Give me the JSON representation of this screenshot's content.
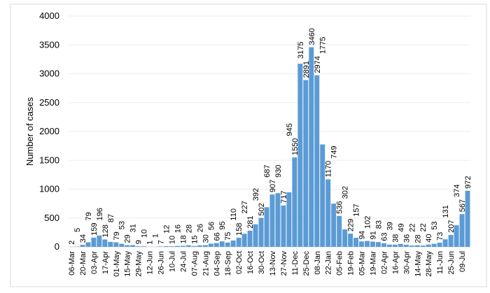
{
  "chart_data": {
    "type": "bar",
    "title": "",
    "xlabel": "",
    "ylabel": "Number of cases",
    "ylim": [
      0,
      4000
    ],
    "y_ticks": [
      0,
      500,
      1000,
      1500,
      2000,
      2500,
      3000,
      3500,
      4000
    ],
    "grid": true,
    "legend": "none",
    "bar_color": "#5B9BD5",
    "x_tick_labels": [
      "06-Mar",
      "20-Mar",
      "03-Apr",
      "17-Apr",
      "01-May",
      "15-May",
      "29-May",
      "12-Jun",
      "26-Jun",
      "10-Jul",
      "24-Jul",
      "07-Aug",
      "21-Aug",
      "04-Sep",
      "18-Sep",
      "02-Oct",
      "16-Oct",
      "30-Oct",
      "13-Nov",
      "27-Nov",
      "11-Dec",
      "25-Dec",
      "08-Jan",
      "22-Jan",
      "05-Feb",
      "19-Feb",
      "05-Mar",
      "19-Mar",
      "02-Apr",
      "16-Apr",
      "30-Apr",
      "14-May",
      "28-May",
      "11-Jun",
      "25-Jun",
      "09-Jul"
    ],
    "values": [
      2,
      5,
      34,
      79,
      159,
      196,
      128,
      87,
      79,
      53,
      29,
      31,
      9,
      10,
      1,
      1,
      7,
      12,
      10,
      16,
      18,
      28,
      15,
      26,
      30,
      56,
      66,
      95,
      75,
      110,
      158,
      227,
      281,
      392,
      502,
      687,
      907,
      930,
      717,
      945,
      1550,
      3175,
      2891,
      3460,
      2974,
      1775,
      1170,
      749,
      536,
      302,
      229,
      157,
      94,
      102,
      91,
      83,
      63,
      39,
      38,
      49,
      36,
      22,
      28,
      22,
      40,
      53,
      73,
      131,
      207,
      374,
      567,
      972
    ]
  }
}
